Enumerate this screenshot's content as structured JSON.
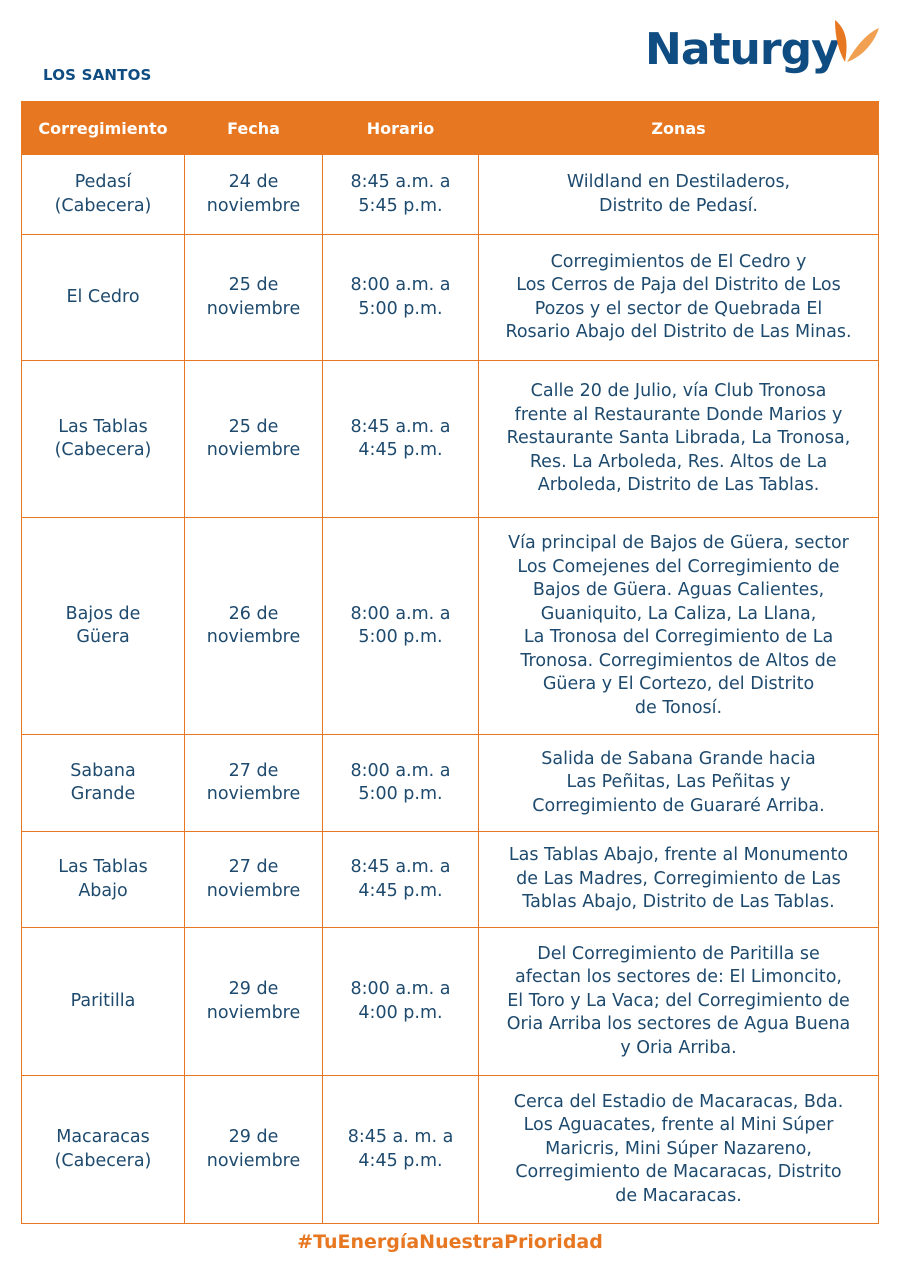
{
  "brand": {
    "name": "Naturgy",
    "color": "#0f4c81",
    "accent": "#e87722"
  },
  "region": "LOS SANTOS",
  "table": {
    "headers": [
      "Corregimiento",
      "Fecha",
      "Horario",
      "Zonas"
    ],
    "rows": [
      {
        "corregimiento": "Pedasí\n(Cabecera)",
        "fecha": "24 de\nnoviembre",
        "horario": "8:45 a.m. a\n5:45 p.m.",
        "zonas": "Wildland en Destiladeros,\nDistrito de Pedasí."
      },
      {
        "corregimiento": "El Cedro",
        "fecha": "25 de\nnoviembre",
        "horario": "8:00 a.m. a\n5:00 p.m.",
        "zonas": "Corregimientos de El Cedro y\nLos Cerros de Paja del Distrito de Los\nPozos y el sector de Quebrada El\nRosario Abajo del Distrito de Las Minas."
      },
      {
        "corregimiento": "Las Tablas\n(Cabecera)",
        "fecha": "25 de\nnoviembre",
        "horario": "8:45 a.m. a\n4:45 p.m.",
        "zonas": "Calle 20 de Julio, vía Club Tronosa\nfrente al Restaurante Donde Marios y\nRestaurante Santa Librada, La Tronosa,\nRes. La Arboleda, Res. Altos de La\nArboleda, Distrito de Las Tablas."
      },
      {
        "corregimiento": "Bajos de\nGüera",
        "fecha": "26 de\nnoviembre",
        "horario": "8:00 a.m. a\n5:00 p.m.",
        "zonas": "Vía principal de Bajos de Güera, sector\nLos Comejenes del Corregimiento de\nBajos de Güera. Aguas Calientes,\nGuaniquito, La Caliza, La Llana,\nLa Tronosa del Corregimiento de La\nTronosa. Corregimientos de Altos de\nGüera y El Cortezo, del Distrito\nde Tonosí."
      },
      {
        "corregimiento": "Sabana\nGrande",
        "fecha": "27 de\nnoviembre",
        "horario": "8:00 a.m. a\n5:00 p.m.",
        "zonas": "Salida de Sabana Grande hacia\nLas Peñitas, Las Peñitas y\nCorregimiento de Guararé Arriba."
      },
      {
        "corregimiento": "Las Tablas\nAbajo",
        "fecha": "27 de\nnoviembre",
        "horario": "8:45 a.m. a\n4:45 p.m.",
        "zonas": "Las Tablas Abajo, frente al Monumento\nde Las Madres, Corregimiento de Las\nTablas Abajo, Distrito de Las Tablas."
      },
      {
        "corregimiento": "Paritilla",
        "fecha": "29 de\nnoviembre",
        "horario": "8:00 a.m. a\n4:00 p.m.",
        "zonas": "Del Corregimiento de Paritilla se\nafectan los sectores de: El Limoncito,\nEl Toro y La Vaca; del Corregimiento de\nOria Arriba los sectores de Agua Buena\ny Oria Arriba."
      },
      {
        "corregimiento": "Macaracas\n(Cabecera)",
        "fecha": "29 de\nnoviembre",
        "horario": "8:45 a. m. a\n4:45 p.m.",
        "zonas": "Cerca del Estadio de Macaracas, Bda.\nLos Aguacates, frente al Mini Súper\nMaricris, Mini Súper Nazareno,\nCorregimiento de Macaracas, Distrito\nde Macaracas."
      }
    ]
  },
  "hashtag": "#TuEnergíaNuestraPrioridad"
}
